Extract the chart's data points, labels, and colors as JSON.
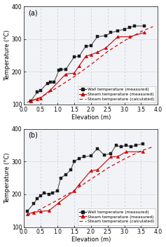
{
  "panel_a": {
    "label": "(a)",
    "wall_x": [
      0.2,
      0.4,
      0.5,
      0.7,
      0.8,
      0.9,
      1.05,
      1.1,
      1.25,
      1.5,
      1.65,
      1.85,
      2.0,
      2.2,
      2.45,
      2.6,
      2.8,
      3.0,
      3.15,
      3.3,
      3.6
    ],
    "wall_y": [
      110,
      138,
      143,
      165,
      168,
      168,
      205,
      207,
      207,
      245,
      248,
      278,
      280,
      308,
      310,
      320,
      325,
      330,
      335,
      340,
      340
    ],
    "steam_meas_x": [
      0.2,
      0.4,
      0.5,
      0.8,
      1.25,
      1.5,
      1.65,
      1.85,
      2.0,
      2.2,
      2.45,
      2.8,
      3.15,
      3.6
    ],
    "steam_meas_y": [
      110,
      118,
      120,
      145,
      193,
      196,
      218,
      248,
      252,
      260,
      273,
      307,
      307,
      320
    ],
    "steam_calc_x": [
      0.1,
      0.5,
      1.0,
      1.5,
      2.0,
      2.5,
      3.0,
      3.5,
      3.85
    ],
    "steam_calc_y": [
      107,
      122,
      152,
      185,
      222,
      262,
      295,
      323,
      338
    ]
  },
  "panel_b": {
    "label": "(b)",
    "wall_x": [
      0.1,
      0.3,
      0.4,
      0.5,
      0.6,
      0.75,
      0.85,
      1.0,
      1.1,
      1.25,
      1.4,
      1.5,
      1.65,
      1.8,
      2.0,
      2.2,
      2.4,
      2.6,
      2.75,
      2.9,
      3.05,
      3.2,
      3.35,
      3.55
    ],
    "wall_y": [
      148,
      172,
      188,
      195,
      205,
      200,
      205,
      210,
      250,
      260,
      275,
      300,
      310,
      315,
      318,
      340,
      320,
      325,
      350,
      345,
      350,
      345,
      350,
      355
    ],
    "steam_meas_x": [
      0.1,
      0.3,
      0.5,
      0.75,
      1.05,
      1.5,
      1.65,
      2.0,
      2.2,
      2.6,
      2.8,
      3.05,
      3.55
    ],
    "steam_meas_y": [
      140,
      145,
      148,
      150,
      175,
      210,
      230,
      272,
      275,
      315,
      315,
      330,
      330
    ],
    "steam_calc_x": [
      0.1,
      0.5,
      1.0,
      1.5,
      2.0,
      2.5,
      3.0,
      3.5,
      3.85
    ],
    "steam_calc_y": [
      135,
      155,
      182,
      212,
      246,
      280,
      308,
      333,
      345
    ]
  },
  "wall_color": "#1a1a1a",
  "steam_meas_color": "#cc0000",
  "steam_calc_color": "#cc0000",
  "xlim": [
    0.0,
    4.0
  ],
  "ylim": [
    100,
    400
  ],
  "xticks": [
    0.0,
    0.5,
    1.0,
    1.5,
    2.0,
    2.5,
    3.0,
    3.5,
    4.0
  ],
  "yticks": [
    100,
    200,
    300,
    400
  ],
  "xlabel": "Elevation (m)",
  "ylabel": "Temperature (°C)",
  "legend_wall": "Wall temperature (measured)",
  "legend_steam_meas": "Steam temperature (measured)",
  "legend_steam_calc": "Steam temperature (calculated)",
  "grid_vert_color": "#c8cfe0",
  "grid_horiz_color": "#d8dce8",
  "bg_color": "#f2f3f7"
}
